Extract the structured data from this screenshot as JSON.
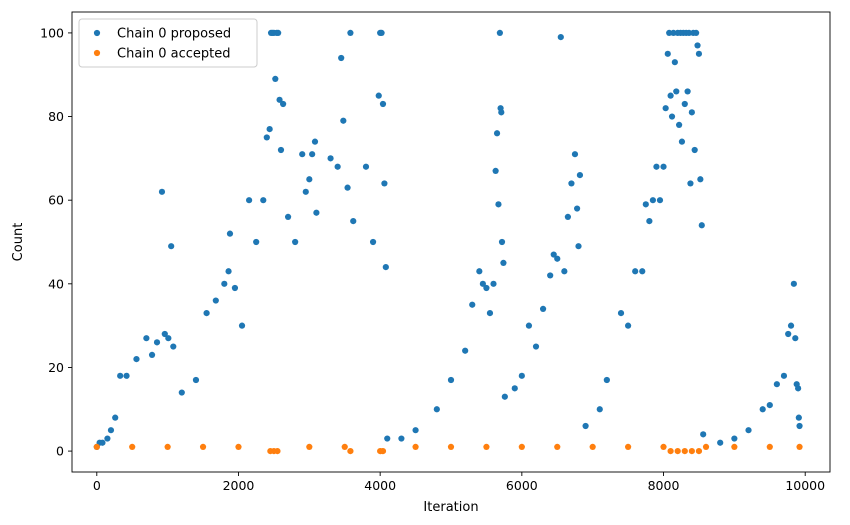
{
  "chart_data": {
    "type": "scatter",
    "title": "",
    "xlabel": "Iteration",
    "ylabel": "Count",
    "xlim": [
      -350,
      10350
    ],
    "ylim": [
      -5,
      105
    ],
    "x_ticks": [
      0,
      2000,
      4000,
      6000,
      8000,
      10000
    ],
    "y_ticks": [
      0,
      20,
      40,
      60,
      80,
      100
    ],
    "x_tick_labels": [
      "0",
      "2000",
      "4000",
      "6000",
      "8000",
      "10000"
    ],
    "y_tick_labels": [
      "0",
      "20",
      "40",
      "60",
      "80",
      "100"
    ],
    "grid": false,
    "legend_position": "top-left",
    "series": [
      {
        "name": "Chain 0 proposed",
        "color": "#1f77b4",
        "points": [
          [
            0,
            1
          ],
          [
            40,
            2
          ],
          [
            80,
            2
          ],
          [
            150,
            3
          ],
          [
            200,
            5
          ],
          [
            260,
            8
          ],
          [
            330,
            18
          ],
          [
            420,
            18
          ],
          [
            560,
            22
          ],
          [
            700,
            27
          ],
          [
            780,
            23
          ],
          [
            850,
            26
          ],
          [
            920,
            62
          ],
          [
            960,
            28
          ],
          [
            1010,
            27
          ],
          [
            1050,
            49
          ],
          [
            1080,
            25
          ],
          [
            1200,
            14
          ],
          [
            1400,
            17
          ],
          [
            1550,
            33
          ],
          [
            1680,
            36
          ],
          [
            1800,
            40
          ],
          [
            1860,
            43
          ],
          [
            1880,
            52
          ],
          [
            1950,
            39
          ],
          [
            2050,
            30
          ],
          [
            2150,
            60
          ],
          [
            2250,
            50
          ],
          [
            2350,
            60
          ],
          [
            2400,
            75
          ],
          [
            2440,
            77
          ],
          [
            2460,
            100
          ],
          [
            2480,
            100
          ],
          [
            2500,
            100
          ],
          [
            2520,
            89
          ],
          [
            2540,
            100
          ],
          [
            2560,
            100
          ],
          [
            2580,
            84
          ],
          [
            2600,
            72
          ],
          [
            2630,
            83
          ],
          [
            2700,
            56
          ],
          [
            2800,
            50
          ],
          [
            2900,
            71
          ],
          [
            2950,
            62
          ],
          [
            3000,
            65
          ],
          [
            3040,
            71
          ],
          [
            3080,
            74
          ],
          [
            3100,
            57
          ],
          [
            3300,
            70
          ],
          [
            3400,
            68
          ],
          [
            3450,
            94
          ],
          [
            3480,
            79
          ],
          [
            3540,
            63
          ],
          [
            3580,
            100
          ],
          [
            3620,
            55
          ],
          [
            3800,
            68
          ],
          [
            3900,
            50
          ],
          [
            3980,
            85
          ],
          [
            4000,
            100
          ],
          [
            4020,
            100
          ],
          [
            4040,
            83
          ],
          [
            4060,
            64
          ],
          [
            4080,
            44
          ],
          [
            4100,
            3
          ],
          [
            4300,
            3
          ],
          [
            4500,
            5
          ],
          [
            4800,
            10
          ],
          [
            5000,
            17
          ],
          [
            5200,
            24
          ],
          [
            5300,
            35
          ],
          [
            5400,
            43
          ],
          [
            5450,
            40
          ],
          [
            5500,
            39
          ],
          [
            5550,
            33
          ],
          [
            5600,
            40
          ],
          [
            5630,
            67
          ],
          [
            5650,
            76
          ],
          [
            5670,
            59
          ],
          [
            5690,
            100
          ],
          [
            5700,
            82
          ],
          [
            5710,
            81
          ],
          [
            5720,
            50
          ],
          [
            5740,
            45
          ],
          [
            5760,
            13
          ],
          [
            5900,
            15
          ],
          [
            6000,
            18
          ],
          [
            6100,
            30
          ],
          [
            6200,
            25
          ],
          [
            6300,
            34
          ],
          [
            6400,
            42
          ],
          [
            6450,
            47
          ],
          [
            6500,
            46
          ],
          [
            6550,
            99
          ],
          [
            6600,
            43
          ],
          [
            6650,
            56
          ],
          [
            6700,
            64
          ],
          [
            6750,
            71
          ],
          [
            6780,
            58
          ],
          [
            6800,
            49
          ],
          [
            6820,
            66
          ],
          [
            6900,
            6
          ],
          [
            7100,
            10
          ],
          [
            7200,
            17
          ],
          [
            7400,
            33
          ],
          [
            7500,
            30
          ],
          [
            7600,
            43
          ],
          [
            7700,
            43
          ],
          [
            7750,
            59
          ],
          [
            7800,
            55
          ],
          [
            7850,
            60
          ],
          [
            7900,
            68
          ],
          [
            7950,
            60
          ],
          [
            8000,
            68
          ],
          [
            8030,
            82
          ],
          [
            8060,
            95
          ],
          [
            8080,
            100
          ],
          [
            8100,
            85
          ],
          [
            8120,
            80
          ],
          [
            8140,
            100
          ],
          [
            8160,
            93
          ],
          [
            8180,
            86
          ],
          [
            8200,
            100
          ],
          [
            8220,
            78
          ],
          [
            8240,
            100
          ],
          [
            8260,
            74
          ],
          [
            8280,
            100
          ],
          [
            8300,
            83
          ],
          [
            8320,
            100
          ],
          [
            8340,
            86
          ],
          [
            8360,
            100
          ],
          [
            8380,
            64
          ],
          [
            8400,
            81
          ],
          [
            8420,
            100
          ],
          [
            8440,
            72
          ],
          [
            8460,
            100
          ],
          [
            8480,
            97
          ],
          [
            8500,
            95
          ],
          [
            8520,
            65
          ],
          [
            8540,
            54
          ],
          [
            8560,
            4
          ],
          [
            8800,
            2
          ],
          [
            9000,
            3
          ],
          [
            9200,
            5
          ],
          [
            9400,
            10
          ],
          [
            9500,
            11
          ],
          [
            9600,
            16
          ],
          [
            9700,
            18
          ],
          [
            9760,
            28
          ],
          [
            9800,
            30
          ],
          [
            9840,
            40
          ],
          [
            9860,
            27
          ],
          [
            9880,
            16
          ],
          [
            9900,
            15
          ],
          [
            9910,
            8
          ],
          [
            9920,
            6
          ]
        ]
      },
      {
        "name": "Chain 0 accepted",
        "color": "#ff7f0e",
        "points": [
          [
            0,
            1
          ],
          [
            500,
            1
          ],
          [
            1000,
            1
          ],
          [
            1500,
            1
          ],
          [
            2000,
            1
          ],
          [
            2450,
            0
          ],
          [
            2500,
            0
          ],
          [
            2550,
            0
          ],
          [
            3000,
            1
          ],
          [
            3500,
            1
          ],
          [
            3580,
            0
          ],
          [
            4000,
            0
          ],
          [
            4040,
            0
          ],
          [
            4500,
            1
          ],
          [
            5000,
            1
          ],
          [
            5500,
            1
          ],
          [
            6000,
            1
          ],
          [
            6500,
            1
          ],
          [
            7000,
            1
          ],
          [
            7500,
            1
          ],
          [
            8000,
            1
          ],
          [
            8100,
            0
          ],
          [
            8200,
            0
          ],
          [
            8300,
            0
          ],
          [
            8400,
            0
          ],
          [
            8500,
            0
          ],
          [
            8600,
            1
          ],
          [
            9000,
            1
          ],
          [
            9500,
            1
          ],
          [
            9920,
            1
          ]
        ]
      }
    ]
  }
}
